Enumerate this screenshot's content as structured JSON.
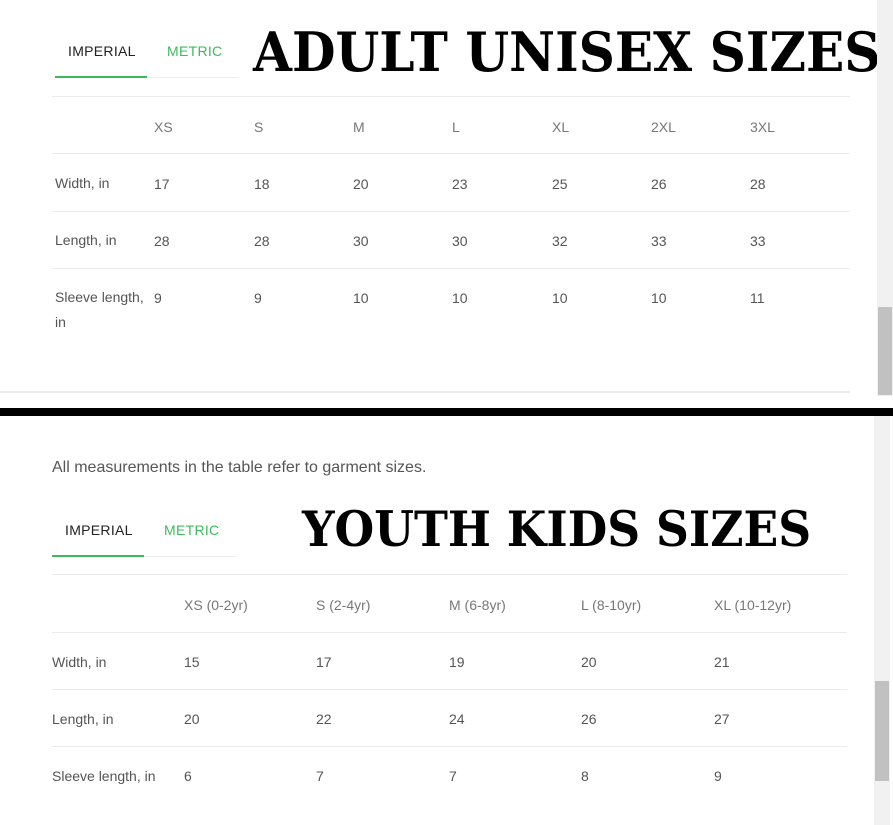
{
  "adult": {
    "tabs": [
      {
        "label": "IMPERIAL",
        "active": true
      },
      {
        "label": "METRIC",
        "active": false
      }
    ],
    "title": "ADULT UNISEX SIZES",
    "table": {
      "headers": [
        "",
        "XS",
        "S",
        "M",
        "L",
        "XL",
        "2XL",
        "3XL"
      ],
      "rows": [
        {
          "label": "Width, in",
          "values": [
            "17",
            "18",
            "20",
            "23",
            "25",
            "26",
            "28"
          ]
        },
        {
          "label": "Length, in",
          "values": [
            "28",
            "28",
            "30",
            "30",
            "32",
            "33",
            "33"
          ]
        },
        {
          "label": "Sleeve length, in",
          "values": [
            "9",
            "9",
            "10",
            "10",
            "10",
            "10",
            "11"
          ]
        }
      ]
    }
  },
  "youth": {
    "note": "All measurements in the table refer to garment sizes.",
    "tabs": [
      {
        "label": "IMPERIAL",
        "active": true
      },
      {
        "label": "METRIC",
        "active": false
      }
    ],
    "title": "YOUTH KIDS SIZES",
    "table": {
      "headers": [
        "",
        "XS (0-2yr)",
        "S (2-4yr)",
        "M (6-8yr)",
        "L (8-10yr)",
        "XL (10-12yr)"
      ],
      "rows": [
        {
          "label": "Width, in",
          "values": [
            "15",
            "17",
            "19",
            "20",
            "21"
          ]
        },
        {
          "label": "Length, in",
          "values": [
            "20",
            "22",
            "24",
            "26",
            "27"
          ]
        },
        {
          "label": "Sleeve length, in",
          "values": [
            "6",
            "7",
            "7",
            "8",
            "9"
          ]
        }
      ]
    }
  },
  "colors": {
    "accent": "#3dbb5c",
    "divider": "#000000"
  }
}
